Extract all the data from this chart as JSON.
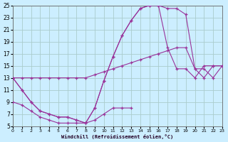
{
  "xlabel": "Windchill (Refroidissement éolien,°C)",
  "bg_color": "#cceeff",
  "grid_color": "#aacccc",
  "line_color": "#993399",
  "xlim": [
    0,
    23
  ],
  "ylim": [
    5,
    25
  ],
  "xticks": [
    0,
    1,
    2,
    3,
    4,
    5,
    6,
    7,
    8,
    9,
    10,
    11,
    12,
    13,
    14,
    15,
    16,
    17,
    18,
    19,
    20,
    21,
    22,
    23
  ],
  "yticks": [
    5,
    7,
    9,
    11,
    13,
    15,
    17,
    19,
    21,
    23,
    25
  ],
  "curve_A_x": [
    0,
    1,
    2,
    3,
    4,
    5,
    6,
    7,
    8,
    9,
    10,
    11,
    12,
    13,
    14,
    15,
    16,
    17,
    18,
    19,
    20,
    21,
    22,
    23
  ],
  "curve_A_y": [
    13,
    11,
    9,
    7.5,
    7,
    6.5,
    6.5,
    6,
    5.5,
    8,
    12.5,
    16.5,
    20,
    22.5,
    24.5,
    25,
    25,
    24.5,
    24.5,
    23.5,
    14.5,
    14.5,
    13,
    15
  ],
  "curve_B_x": [
    0,
    1,
    2,
    3,
    4,
    5,
    6,
    7,
    8,
    9,
    10,
    11,
    12,
    13,
    14,
    15,
    16,
    17,
    18,
    19,
    20,
    21,
    22,
    23
  ],
  "curve_B_y": [
    13,
    11,
    9,
    7.5,
    7,
    6.5,
    6.5,
    6,
    5.5,
    8,
    12.5,
    16.5,
    20,
    22.5,
    24.5,
    25,
    25,
    18,
    14.5,
    14.5,
    13,
    15,
    15,
    15
  ],
  "curve_C_x": [
    0,
    1,
    2,
    3,
    4,
    5,
    6,
    7,
    8,
    9,
    10,
    11,
    12,
    13,
    14,
    15,
    16,
    17,
    18,
    19,
    20,
    21,
    22,
    23
  ],
  "curve_C_y": [
    13,
    13,
    13,
    13,
    13,
    13,
    13,
    13,
    13,
    13.5,
    14,
    14.5,
    15,
    15.5,
    16,
    16.5,
    17,
    17.5,
    18,
    18,
    14.5,
    13,
    15,
    15
  ],
  "curve_D_x": [
    0,
    1,
    2,
    3,
    4,
    5,
    6,
    7,
    8,
    9,
    10,
    11,
    12,
    13
  ],
  "curve_D_y": [
    9,
    8.5,
    7.5,
    6.5,
    6,
    5.5,
    5.5,
    5.5,
    5.5,
    6,
    7,
    8,
    8,
    8
  ]
}
